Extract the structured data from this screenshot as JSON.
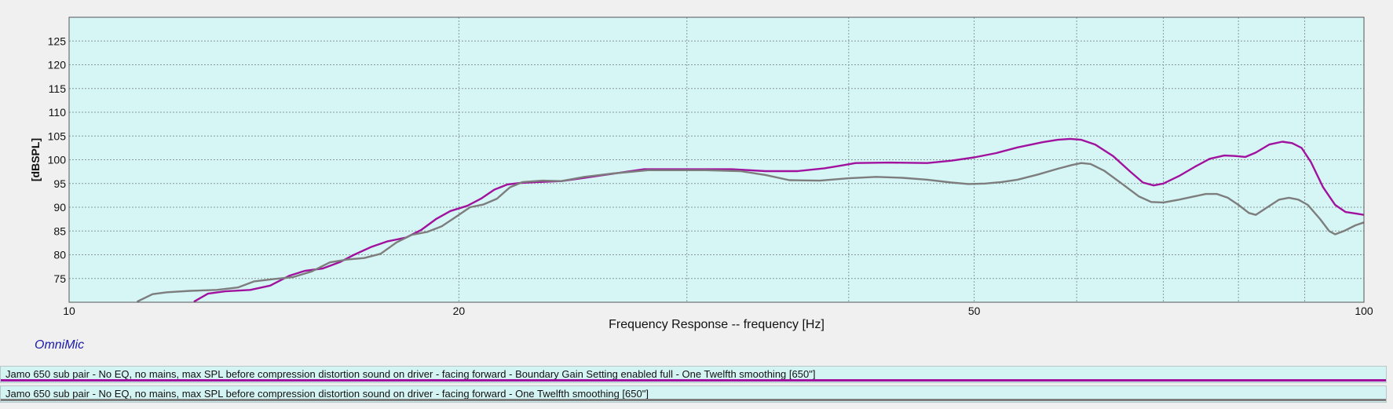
{
  "chart_data": {
    "type": "line",
    "title": "",
    "xlabel": "Frequency Response -- frequency [Hz]",
    "ylabel": "[dBSPL]",
    "x_scale": "log",
    "xlim": [
      10,
      100
    ],
    "ylim": [
      70,
      130
    ],
    "x_ticks": [
      10,
      20,
      50,
      100
    ],
    "x_tick_labels": [
      "10",
      "20",
      "50",
      "100"
    ],
    "x_minor_gridlines": [
      30,
      40,
      60,
      70,
      80,
      90
    ],
    "y_ticks": [
      75,
      80,
      85,
      90,
      95,
      100,
      105,
      110,
      115,
      120,
      125
    ],
    "y_tick_labels": [
      "75",
      "80",
      "85",
      "90",
      "95",
      "100",
      "105",
      "110",
      "115",
      "120",
      "125"
    ],
    "grid": true,
    "legend_position": "bottom",
    "background_color": "#d6f5f5",
    "series": [
      {
        "name": "Jamo 650 sub pair - No EQ, no mains, max SPL before compression distortion sound on driver - facing forward  - Boundary Gain Setting enabled full - One Twelfth smoothing [650\"]",
        "color": "#a0129e",
        "points": [
          [
            12.5,
            70.2
          ],
          [
            12.8,
            71.8
          ],
          [
            13.2,
            72.3
          ],
          [
            13.8,
            72.6
          ],
          [
            14.3,
            73.5
          ],
          [
            14.8,
            75.6
          ],
          [
            15.2,
            76.6
          ],
          [
            15.7,
            77.1
          ],
          [
            16.2,
            78.5
          ],
          [
            16.6,
            80.0
          ],
          [
            17.1,
            81.6
          ],
          [
            17.6,
            82.8
          ],
          [
            18.2,
            83.6
          ],
          [
            18.7,
            85.2
          ],
          [
            19.2,
            87.5
          ],
          [
            19.7,
            89.2
          ],
          [
            20.3,
            90.3
          ],
          [
            20.8,
            91.8
          ],
          [
            21.3,
            93.7
          ],
          [
            21.8,
            94.8
          ],
          [
            22.3,
            95.1
          ],
          [
            23.0,
            95.3
          ],
          [
            24.0,
            95.5
          ],
          [
            25.0,
            96.2
          ],
          [
            26.2,
            97.0
          ],
          [
            27.8,
            98.0
          ],
          [
            30.0,
            98.0
          ],
          [
            32.5,
            98.0
          ],
          [
            34.5,
            97.6
          ],
          [
            36.5,
            97.6
          ],
          [
            38.3,
            98.2
          ],
          [
            39.5,
            98.8
          ],
          [
            40.5,
            99.3
          ],
          [
            43.0,
            99.4
          ],
          [
            46.0,
            99.3
          ],
          [
            48.0,
            99.8
          ],
          [
            50.0,
            100.5
          ],
          [
            52.0,
            101.4
          ],
          [
            54.0,
            102.6
          ],
          [
            56.5,
            103.7
          ],
          [
            58.0,
            104.2
          ],
          [
            59.3,
            104.4
          ],
          [
            60.5,
            104.2
          ],
          [
            62.0,
            103.2
          ],
          [
            64.0,
            100.8
          ],
          [
            66.0,
            97.5
          ],
          [
            67.5,
            95.2
          ],
          [
            68.8,
            94.6
          ],
          [
            70.0,
            95.0
          ],
          [
            72.0,
            96.6
          ],
          [
            74.0,
            98.5
          ],
          [
            76.0,
            100.2
          ],
          [
            78.0,
            100.9
          ],
          [
            79.5,
            100.8
          ],
          [
            81.0,
            100.6
          ],
          [
            82.5,
            101.5
          ],
          [
            84.5,
            103.2
          ],
          [
            86.5,
            103.8
          ],
          [
            88.0,
            103.5
          ],
          [
            89.5,
            102.5
          ],
          [
            91.0,
            99.5
          ],
          [
            93.0,
            94.2
          ],
          [
            95.0,
            90.5
          ],
          [
            96.8,
            89.0
          ],
          [
            98.5,
            88.7
          ],
          [
            100.5,
            88.3
          ],
          [
            102.0,
            87.6
          ],
          [
            104.0,
            86.8
          ],
          [
            106.0,
            86.0
          ]
        ]
      },
      {
        "name": "Jamo 650 sub pair - No EQ, no mains, max SPL before compression distortion sound on driver - facing forward  - One Twelfth smoothing [650\"]",
        "color": "#7d7d7d",
        "points": [
          [
            11.3,
            70.2
          ],
          [
            11.6,
            71.7
          ],
          [
            11.9,
            72.1
          ],
          [
            12.4,
            72.4
          ],
          [
            13.0,
            72.6
          ],
          [
            13.5,
            73.1
          ],
          [
            13.9,
            74.4
          ],
          [
            14.4,
            74.9
          ],
          [
            14.9,
            75.3
          ],
          [
            15.4,
            76.5
          ],
          [
            15.9,
            78.4
          ],
          [
            16.4,
            79.0
          ],
          [
            16.9,
            79.3
          ],
          [
            17.4,
            80.2
          ],
          [
            17.9,
            82.6
          ],
          [
            18.4,
            84.2
          ],
          [
            18.9,
            84.8
          ],
          [
            19.4,
            86.0
          ],
          [
            19.9,
            88.0
          ],
          [
            20.4,
            90.0
          ],
          [
            20.9,
            90.6
          ],
          [
            21.4,
            91.8
          ],
          [
            21.9,
            94.2
          ],
          [
            22.4,
            95.3
          ],
          [
            23.2,
            95.6
          ],
          [
            24.0,
            95.5
          ],
          [
            25.0,
            96.4
          ],
          [
            26.3,
            97.1
          ],
          [
            28.0,
            97.8
          ],
          [
            31.0,
            97.8
          ],
          [
            33.0,
            97.6
          ],
          [
            34.5,
            96.8
          ],
          [
            36.0,
            95.7
          ],
          [
            38.0,
            95.6
          ],
          [
            40.0,
            96.1
          ],
          [
            42.0,
            96.4
          ],
          [
            44.0,
            96.2
          ],
          [
            46.0,
            95.8
          ],
          [
            48.0,
            95.2
          ],
          [
            49.5,
            94.9
          ],
          [
            51.0,
            95.0
          ],
          [
            52.5,
            95.3
          ],
          [
            54.0,
            95.8
          ],
          [
            56.0,
            96.9
          ],
          [
            58.0,
            98.1
          ],
          [
            59.5,
            98.9
          ],
          [
            60.5,
            99.3
          ],
          [
            61.5,
            99.1
          ],
          [
            63.0,
            97.7
          ],
          [
            65.0,
            95.0
          ],
          [
            67.0,
            92.3
          ],
          [
            68.5,
            91.1
          ],
          [
            70.0,
            91.0
          ],
          [
            72.0,
            91.6
          ],
          [
            74.0,
            92.3
          ],
          [
            75.5,
            92.8
          ],
          [
            77.0,
            92.8
          ],
          [
            78.5,
            92.0
          ],
          [
            80.0,
            90.5
          ],
          [
            81.5,
            88.8
          ],
          [
            82.5,
            88.4
          ],
          [
            84.0,
            89.8
          ],
          [
            86.0,
            91.6
          ],
          [
            87.5,
            92.0
          ],
          [
            89.0,
            91.6
          ],
          [
            90.5,
            90.5
          ],
          [
            92.5,
            87.5
          ],
          [
            94.0,
            85.0
          ],
          [
            95.0,
            84.3
          ],
          [
            96.5,
            85.0
          ],
          [
            98.5,
            86.2
          ],
          [
            100.5,
            87.0
          ],
          [
            102.0,
            87.3
          ],
          [
            104.0,
            86.4
          ],
          [
            106.0,
            84.5
          ]
        ]
      }
    ]
  },
  "branding": {
    "logo_text": "OmniMic"
  },
  "legend": [
    {
      "text": "Jamo 650 sub pair - No EQ, no mains, max SPL before compression distortion sound on driver - facing forward  - Boundary Gain Setting enabled full - One Twelfth smoothing [650\"]",
      "color": "#a0129e"
    },
    {
      "text": "Jamo 650 sub pair - No EQ, no mains, max SPL before compression distortion sound on driver - facing forward  - One Twelfth smoothing [650\"]",
      "color": "#7d7d7d"
    }
  ]
}
